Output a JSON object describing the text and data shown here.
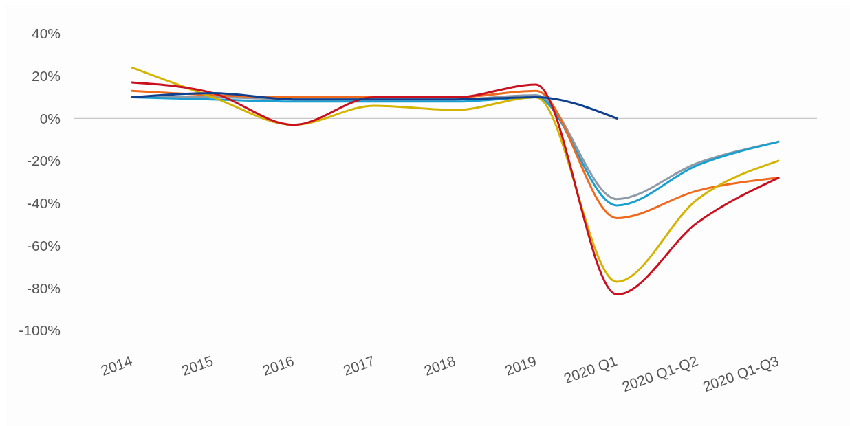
{
  "chart_data": {
    "type": "line",
    "categories": [
      "2014",
      "2015",
      "2016",
      "2017",
      "2018",
      "2019",
      "2020 Q1",
      "2020 Q1-Q2",
      "2020 Q1-Q3"
    ],
    "series": [
      {
        "color": "#8e9aa6",
        "values": [
          10,
          10,
          9,
          9,
          9,
          11,
          -38,
          -21,
          -11
        ]
      },
      {
        "color": "#1a9fd0",
        "values": [
          10,
          9,
          8,
          8,
          8,
          10,
          -41,
          -22,
          -11
        ]
      },
      {
        "color": "#f06a1e",
        "values": [
          13,
          11,
          10,
          10,
          10,
          13,
          -47,
          -34,
          -28
        ]
      },
      {
        "color": "#d4b400",
        "values": [
          24,
          10,
          -3,
          6,
          4,
          10,
          -77,
          -38,
          -20
        ]
      },
      {
        "color": "#c8101e",
        "values": [
          17,
          12,
          -3,
          10,
          10,
          16,
          -83,
          -49,
          -28
        ]
      },
      {
        "color": "#0f3f8f",
        "values": [
          10,
          12,
          9,
          9,
          9,
          10,
          0,
          null,
          null
        ]
      }
    ],
    "ylim": [
      -100,
      40
    ],
    "yticks": [
      {
        "value": 40,
        "label": "40%"
      },
      {
        "value": 20,
        "label": "20%"
      },
      {
        "value": 0,
        "label": "0%"
      },
      {
        "value": -20,
        "label": "-20%"
      },
      {
        "value": -40,
        "label": "-40%"
      },
      {
        "value": -60,
        "label": "-60%"
      },
      {
        "value": -80,
        "label": "-80%"
      },
      {
        "value": -100,
        "label": "-100%"
      }
    ],
    "ref_lines": [
      {
        "axis": "y",
        "value": 0,
        "color": "#c8c8c8"
      }
    ],
    "grid": false,
    "legend": false,
    "marker": "none",
    "line_style": "solid"
  }
}
